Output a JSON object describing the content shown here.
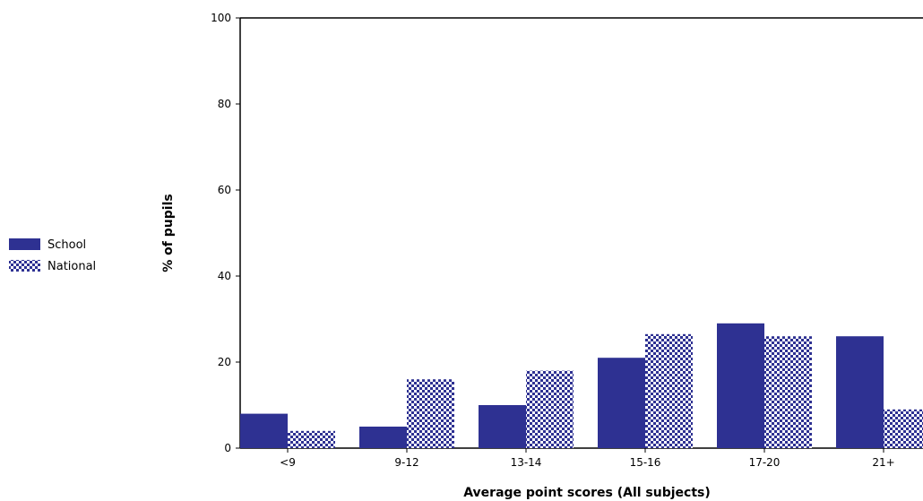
{
  "chart_data": {
    "type": "bar",
    "title": "",
    "xlabel": "Average point scores (All subjects)",
    "ylabel": "% of pupils",
    "ylim": [
      0,
      100
    ],
    "yticks": [
      0,
      20,
      40,
      60,
      80,
      100
    ],
    "categories": [
      "<9",
      "9-12",
      "13-14",
      "15-16",
      "17-20",
      "21+"
    ],
    "series": [
      {
        "name": "School",
        "values": [
          8,
          5,
          10,
          21,
          29,
          26
        ],
        "color": "#2e3192",
        "fill": "solid"
      },
      {
        "name": "National",
        "values": [
          4,
          16,
          18,
          26.5,
          26,
          9
        ],
        "color": "#2e3192",
        "fill": "checker"
      }
    ],
    "legend_position": "left",
    "grid": false
  }
}
